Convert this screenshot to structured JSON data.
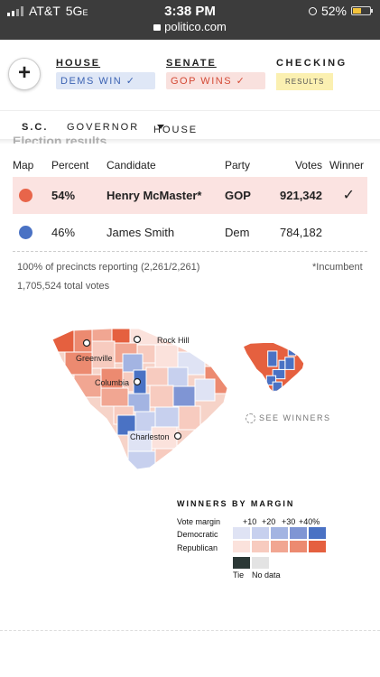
{
  "status_bar": {
    "carrier": "AT&T",
    "network": "5G",
    "network_suffix": "E",
    "time": "3:38 PM",
    "url": "politico.com",
    "battery_percent": "52%",
    "battery_level": 0.52
  },
  "header": {
    "add_label": "+",
    "house": {
      "title": "HOUSE",
      "status": "DEMS WIN ✓"
    },
    "senate": {
      "title": "SENATE",
      "status": "GOP WINS ✓"
    },
    "checking": {
      "title": "CHECKING",
      "status": "RESULTS"
    }
  },
  "nav": {
    "state": "S.C.",
    "governor": "GOVERNOR",
    "house": "HOUSE"
  },
  "section_heading": "Election results",
  "table": {
    "headers": {
      "map": "Map",
      "percent": "Percent",
      "candidate": "Candidate",
      "party": "Party",
      "votes": "Votes",
      "winner": "Winner"
    },
    "rows": [
      {
        "percent": "54%",
        "candidate": "Henry McMaster*",
        "party": "GOP",
        "votes": "921,342",
        "winner": "✓",
        "color": "#e8654a"
      },
      {
        "percent": "46%",
        "candidate": "James Smith",
        "party": "Dem",
        "votes": "784,182",
        "winner": "",
        "color": "#4a72c4"
      }
    ]
  },
  "footnotes": {
    "precincts": "100% of precincts reporting (2,261/2,261)",
    "incumbent": "*Incumbent",
    "total_votes": "1,705,524 total votes"
  },
  "map": {
    "cities": {
      "rock_hill": "Rock Hill",
      "greenville": "Greenville",
      "columbia": "Columbia",
      "charleston": "Charleston"
    },
    "see_winners": "SEE WINNERS"
  },
  "legend": {
    "title": "WINNERS BY MARGIN",
    "vote_margin_label": "Vote margin",
    "steps": [
      "+10",
      "+20",
      "+30",
      "+40%"
    ],
    "democratic_label": "Democratic",
    "republican_label": "Republican",
    "dem_colors": [
      "#dfe3f4",
      "#c7d0ee",
      "#a3b4e2",
      "#7f95d4",
      "#4a72c4"
    ],
    "rep_colors": [
      "#fbe2dc",
      "#f7cbbf",
      "#f1a692",
      "#ec8a70",
      "#e5603f"
    ],
    "tie_label": "Tie",
    "tie_color": "#2b3836",
    "no_data_label": "No data",
    "no_data_color": "#e3e3e3"
  }
}
